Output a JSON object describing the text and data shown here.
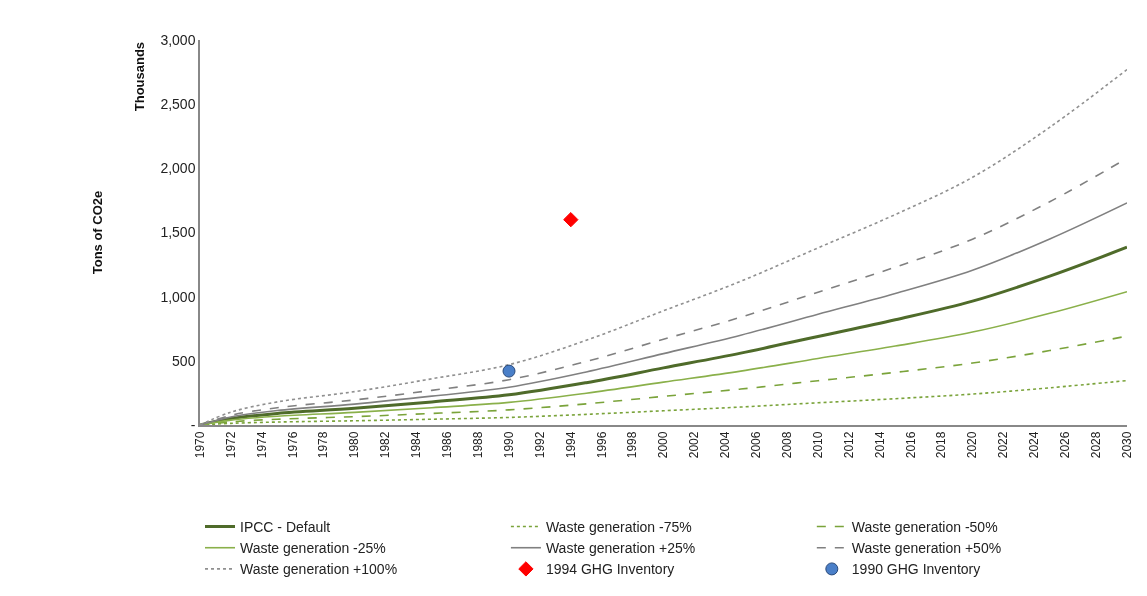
{
  "chart_data": {
    "type": "line",
    "ylabel": "Tons of CO2e",
    "annotations": [
      "Thousands"
    ],
    "x": [
      1970,
      1972,
      1975,
      1980,
      1985,
      1990,
      1995,
      2000,
      2005,
      2010,
      2015,
      2020,
      2025,
      2030
    ],
    "xlim": [
      1970,
      2030
    ],
    "xticks": [
      1970,
      1972,
      1974,
      1976,
      1978,
      1980,
      1982,
      1984,
      1986,
      1988,
      1990,
      1992,
      1994,
      1996,
      1998,
      2000,
      2002,
      2004,
      2006,
      2008,
      2010,
      2012,
      2014,
      2016,
      2018,
      2020,
      2022,
      2024,
      2026,
      2028,
      2030
    ],
    "ylim": [
      0,
      3000
    ],
    "yticks": [
      {
        "value": 0,
        "label": "-"
      },
      {
        "value": 500,
        "label": "500"
      },
      {
        "value": 1000,
        "label": "1,000"
      },
      {
        "value": 1500,
        "label": "1,500"
      },
      {
        "value": 2000,
        "label": "2,000"
      },
      {
        "value": 2500,
        "label": "2,500"
      },
      {
        "value": 3000,
        "label": "3,000"
      }
    ],
    "legend": "bottom",
    "marker": "none",
    "series": [
      {
        "name": "IPCC - Default",
        "color": "#4f6b2a",
        "line_style": "solid",
        "values": [
          0,
          50,
          90,
          130,
          180,
          235,
          330,
          445,
          560,
          690,
          820,
          965,
          1160,
          1385
        ]
      },
      {
        "name": "Waste generation -75%",
        "color": "#7aa33a",
        "line_style": "dotted",
        "values": [
          0,
          13,
          23,
          33,
          45,
          59,
          83,
          111,
          140,
          173,
          205,
          241,
          290,
          346
        ]
      },
      {
        "name": "Waste generation -50%",
        "color": "#7aa33a",
        "line_style": "dashed",
        "values": [
          0,
          25,
          45,
          65,
          90,
          118,
          165,
          223,
          280,
          345,
          410,
          483,
          580,
          693
        ]
      },
      {
        "name": "Waste generation -25%",
        "color": "#8ab04a",
        "line_style": "solid",
        "values": [
          0,
          38,
          68,
          98,
          135,
          176,
          248,
          334,
          420,
          518,
          615,
          724,
          870,
          1039
        ]
      },
      {
        "name": "Waste generation +25%",
        "color": "#808080",
        "line_style": "solid",
        "values": [
          0,
          63,
          113,
          163,
          225,
          294,
          413,
          556,
          700,
          863,
          1025,
          1206,
          1450,
          1731
        ]
      },
      {
        "name": "Waste generation +50%",
        "color": "#808080",
        "line_style": "dashed",
        "values": [
          0,
          75,
          135,
          195,
          270,
          353,
          495,
          668,
          840,
          1035,
          1230,
          1448,
          1740,
          2078
        ]
      },
      {
        "name": "Waste generation +100%",
        "color": "#909090",
        "line_style": "dotted",
        "values": [
          0,
          100,
          180,
          260,
          360,
          470,
          660,
          890,
          1120,
          1380,
          1640,
          1930,
          2320,
          2770
        ]
      },
      {
        "name": "1994 GHG Inventory",
        "type": "scatter",
        "marker": "diamond",
        "color": "#ff0000",
        "x": [
          1994
        ],
        "values": [
          1600
        ]
      },
      {
        "name": "1990 GHG Inventory",
        "type": "scatter",
        "marker": "circle",
        "color": "#4a7fc8",
        "x": [
          1990
        ],
        "values": [
          420
        ]
      }
    ]
  }
}
